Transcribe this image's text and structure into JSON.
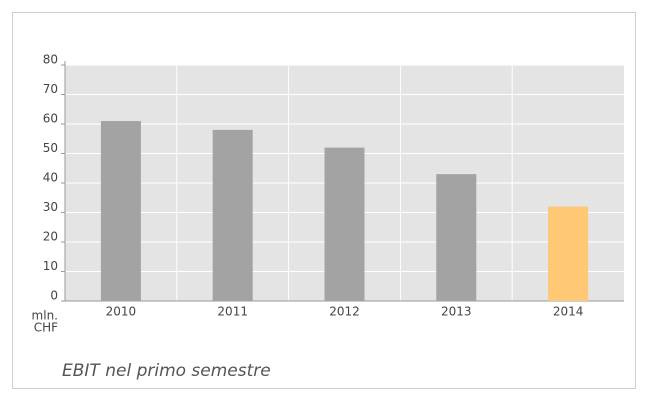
{
  "chart_data": {
    "type": "bar",
    "categories": [
      "2010",
      "2011",
      "2012",
      "2013",
      "2014"
    ],
    "values": [
      61,
      58,
      52,
      43,
      32
    ],
    "colors": [
      "#a3a3a3",
      "#a3a3a3",
      "#a3a3a3",
      "#a3a3a3",
      "#ffc875"
    ],
    "ylim": [
      0,
      80
    ],
    "yticks": [
      0,
      10,
      20,
      30,
      40,
      50,
      60,
      70,
      80
    ],
    "y_unit_lines": [
      "mln.",
      "CHF"
    ],
    "caption": "EBIT nel primo semestre",
    "grid": true
  }
}
